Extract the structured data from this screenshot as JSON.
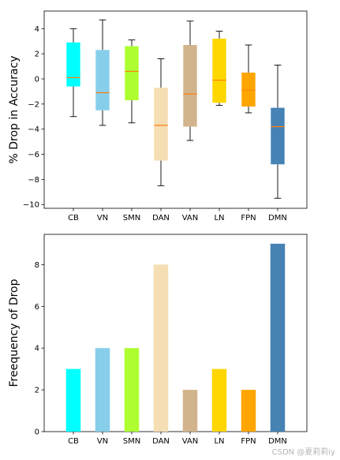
{
  "chart_data": [
    {
      "type": "box",
      "ylabel": "% Drop in Accuracy",
      "ylim": [
        -10.3,
        5.4
      ],
      "yticks": [
        4,
        2,
        0,
        -2,
        -4,
        -6,
        -8,
        -10
      ],
      "categories": [
        "CB",
        "VN",
        "SMN",
        "DAN",
        "VAN",
        "LN",
        "FPN",
        "DMN"
      ],
      "colors": [
        "#00FFFF",
        "#87CEEB",
        "#ADFF2F",
        "#F5DEB3",
        "#D2B48C",
        "#FFD700",
        "#FFA500",
        "#4682B4"
      ],
      "median_color": "#FF7F0E",
      "boxes": [
        {
          "whisker_low": -3.0,
          "q1": -0.6,
          "median": 0.1,
          "q3": 2.9,
          "whisker_high": 4.0
        },
        {
          "whisker_low": -3.7,
          "q1": -2.5,
          "median": -1.1,
          "q3": 2.3,
          "whisker_high": 4.7
        },
        {
          "whisker_low": -3.5,
          "q1": -1.7,
          "median": 0.6,
          "q3": 2.6,
          "whisker_high": 3.1
        },
        {
          "whisker_low": -8.5,
          "q1": -6.5,
          "median": -3.7,
          "q3": -0.7,
          "whisker_high": 1.6
        },
        {
          "whisker_low": -4.9,
          "q1": -3.8,
          "median": -1.2,
          "q3": 2.7,
          "whisker_high": 4.6
        },
        {
          "whisker_low": -2.1,
          "q1": -1.9,
          "median": -0.1,
          "q3": 3.2,
          "whisker_high": 3.8
        },
        {
          "whisker_low": -2.7,
          "q1": -2.2,
          "median": -0.9,
          "q3": 0.5,
          "whisker_high": 2.7
        },
        {
          "whisker_low": -9.5,
          "q1": -6.8,
          "median": -3.8,
          "q3": -2.3,
          "whisker_high": 1.1
        }
      ]
    },
    {
      "type": "bar",
      "ylabel": "Freequency of Drop",
      "ylim": [
        0,
        9.45
      ],
      "yticks": [
        0,
        2,
        4,
        6,
        8
      ],
      "categories": [
        "CB",
        "VN",
        "SMN",
        "DAN",
        "VAN",
        "LN",
        "FPN",
        "DMN"
      ],
      "values": [
        3,
        4,
        4,
        8,
        2,
        3,
        2,
        9
      ],
      "colors": [
        "#00FFFF",
        "#87CEEB",
        "#ADFF2F",
        "#F5DEB3",
        "#D2B48C",
        "#FFD700",
        "#FFA500",
        "#4682B4"
      ]
    }
  ],
  "watermark": "CSDN @夏莉莉iy"
}
